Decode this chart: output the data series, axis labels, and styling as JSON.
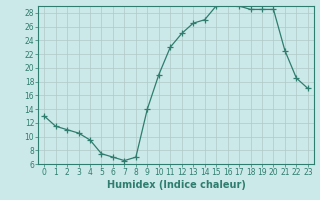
{
  "x": [
    0,
    1,
    2,
    3,
    4,
    5,
    6,
    7,
    8,
    9,
    10,
    11,
    12,
    13,
    14,
    15,
    16,
    17,
    18,
    19,
    20,
    21,
    22,
    23
  ],
  "y": [
    13,
    11.5,
    11,
    10.5,
    9.5,
    7.5,
    7,
    6.5,
    7,
    14,
    19,
    23,
    25,
    26.5,
    27,
    29,
    29.5,
    29,
    28.5,
    28.5,
    28.5,
    22.5,
    18.5,
    17
  ],
  "line_color": "#2e7d6e",
  "marker": "+",
  "marker_size": 4,
  "bg_color": "#cce9e9",
  "xlabel": "Humidex (Indice chaleur)",
  "ylim": [
    6,
    29
  ],
  "xlim": [
    -0.5,
    23.5
  ],
  "yticks": [
    6,
    8,
    10,
    12,
    14,
    16,
    18,
    20,
    22,
    24,
    26,
    28
  ],
  "xticks": [
    0,
    1,
    2,
    3,
    4,
    5,
    6,
    7,
    8,
    9,
    10,
    11,
    12,
    13,
    14,
    15,
    16,
    17,
    18,
    19,
    20,
    21,
    22,
    23
  ],
  "title_color": "#2e7d6e",
  "tick_fontsize": 5.5,
  "xlabel_fontsize": 7
}
